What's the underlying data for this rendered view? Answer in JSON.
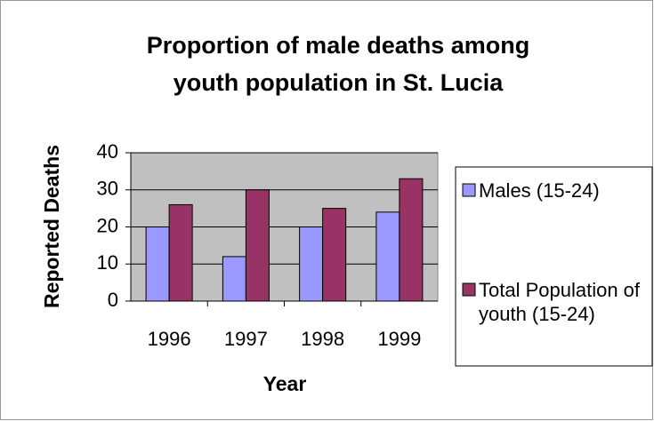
{
  "chart_data": {
    "type": "bar",
    "title": "Proportion of male deaths among youth population in St. Lucia",
    "x_label": "Year",
    "y_label": "Reported Deaths",
    "categories": [
      "1996",
      "1997",
      "1998",
      "1999"
    ],
    "series": [
      {
        "name": "Males (15-24)",
        "color": "#9999ff",
        "values": [
          20,
          12,
          20,
          24
        ]
      },
      {
        "name": "Total Population of youth (15-24)",
        "color": "#993366",
        "values": [
          26,
          30,
          25,
          33
        ]
      }
    ],
    "ylim": [
      0,
      40
    ],
    "yticks": [
      0,
      10,
      20,
      30,
      40
    ],
    "grid": true,
    "legend": "right"
  }
}
